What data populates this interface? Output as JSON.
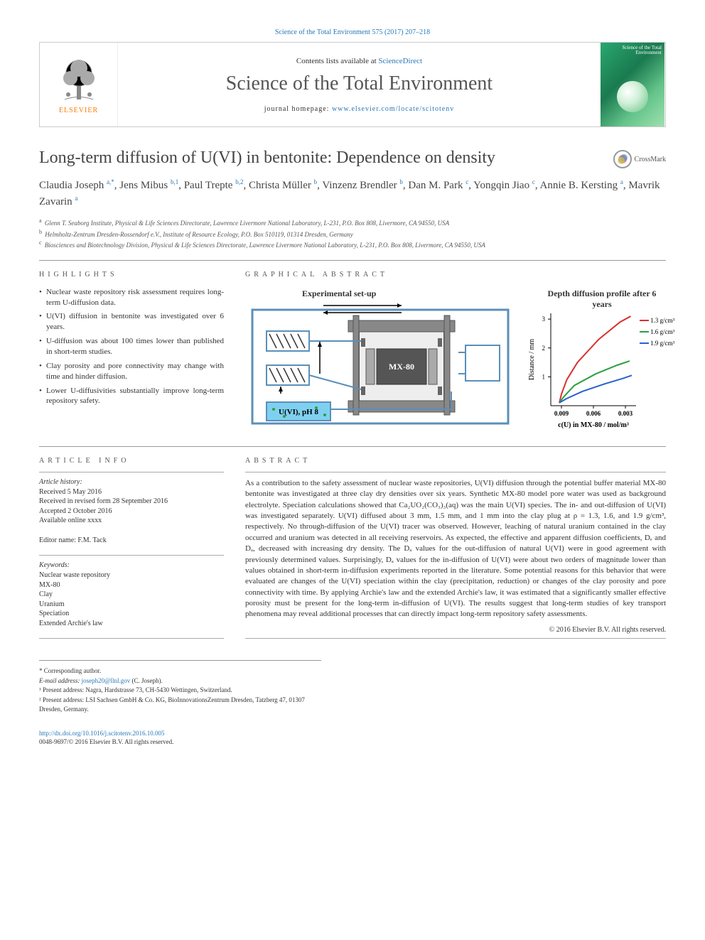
{
  "journal_ref": "Science of the Total Environment 575 (2017) 207–218",
  "masthead": {
    "contents_prefix": "Contents lists available at ",
    "contents_link": "ScienceDirect",
    "journal_name": "Science of the Total Environment",
    "homepage_prefix": "journal homepage: ",
    "homepage_url": "www.elsevier.com/locate/scitotenv",
    "publisher": "ELSEVIER",
    "cover_label": "Science of the Total Environment"
  },
  "crossmark_label": "CrossMark",
  "article_title": "Long-term diffusion of U(VI) in bentonite: Dependence on density",
  "authors_html": "Claudia Joseph <sup>a,*</sup>, Jens Mibus <sup>b,1</sup>, Paul Trepte <sup>b,2</sup>, Christa Müller <sup>b</sup>, Vinzenz Brendler <sup>b</sup>, Dan M. Park <sup>c</sup>, Yongqin Jiao <sup>c</sup>, Annie B. Kersting <sup>a</sup>, Mavrik Zavarin <sup>a</sup>",
  "affiliations": [
    {
      "sup": "a",
      "text": "Glenn T. Seaborg Institute, Physical & Life Sciences Directorate, Lawrence Livermore National Laboratory, L-231, P.O. Box 808, Livermore, CA 94550, USA"
    },
    {
      "sup": "b",
      "text": "Helmholtz-Zentrum Dresden-Rossendorf e.V., Institute of Resource Ecology, P.O. Box 510119, 01314 Dresden, Germany"
    },
    {
      "sup": "c",
      "text": "Biosciences and Biotechnology Division, Physical & Life Sciences Directorate, Lawrence Livermore National Laboratory, L-231, P.O. Box 808, Livermore, CA 94550, USA"
    }
  ],
  "highlights_heading": "HIGHLIGHTS",
  "ga_heading": "GRAPHICAL ABSTRACT",
  "highlights": [
    "Nuclear waste repository risk assessment requires long-term U-diffusion data.",
    "U(VI) diffusion in bentonite was investigated over 6 years.",
    "U-diffusion was about 100 times lower than published in short-term studies.",
    "Clay porosity and pore connectivity may change with time and hinder diffusion.",
    "Lower U-diffusivities substantially improve long-term repository safety."
  ],
  "ga": {
    "setup_label": "Experimental set-up",
    "profile_label": "Depth diffusion profile after 6 years",
    "cell_label": "MX-80",
    "uvi_label": "U(VI), pH 8",
    "densities": [
      "1.3 g/cm³",
      "1.6 g/cm³",
      "1.9 g/cm³"
    ],
    "y_ticks": [
      "1",
      "2",
      "3"
    ],
    "y_axis": "Distance / mm",
    "x_ticks": [
      "0.009",
      "0.006",
      "0.003"
    ],
    "x_axis": "c(U) in MX-80 / mol/m³",
    "colors": {
      "frame": "#5b8fb9",
      "hatch": "#333333",
      "cell_dark": "#555555",
      "cell_grey": "#888888",
      "uvi_box": "#7fd0f0",
      "line_red": "#d93030",
      "line_green": "#2aa040",
      "line_blue": "#2860d0",
      "bg": "#ffffff"
    },
    "profile_data": {
      "x_domain": [
        0.01,
        0.002
      ],
      "y_domain": [
        0,
        3.2
      ],
      "series": [
        {
          "name": "1.3",
          "color": "#d93030",
          "points": [
            [
              0.0092,
              0.1
            ],
            [
              0.009,
              0.4
            ],
            [
              0.0085,
              0.9
            ],
            [
              0.0075,
              1.5
            ],
            [
              0.0055,
              2.3
            ],
            [
              0.0035,
              2.9
            ],
            [
              0.0025,
              3.1
            ]
          ]
        },
        {
          "name": "1.6",
          "color": "#2aa040",
          "points": [
            [
              0.0092,
              0.1
            ],
            [
              0.0088,
              0.3
            ],
            [
              0.0078,
              0.7
            ],
            [
              0.0058,
              1.1
            ],
            [
              0.0038,
              1.4
            ],
            [
              0.0026,
              1.55
            ]
          ]
        },
        {
          "name": "1.9",
          "color": "#2860d0",
          "points": [
            [
              0.0092,
              0.1
            ],
            [
              0.0085,
              0.25
            ],
            [
              0.007,
              0.5
            ],
            [
              0.005,
              0.75
            ],
            [
              0.0032,
              0.95
            ],
            [
              0.0024,
              1.05
            ]
          ]
        }
      ]
    }
  },
  "article_info_heading": "ARTICLE INFO",
  "abstract_heading": "ABSTRACT",
  "history_label": "Article history:",
  "history": [
    "Received 5 May 2016",
    "Received in revised form 28 September 2016",
    "Accepted 2 October 2016",
    "Available online xxxx"
  ],
  "editor_label": "Editor name: F.M. Tack",
  "keywords_label": "Keywords:",
  "keywords": [
    "Nuclear waste repository",
    "MX-80",
    "Clay",
    "Uranium",
    "Speciation",
    "Extended Archie's law"
  ],
  "abstract_text": "As a contribution to the safety assessment of nuclear waste repositories, U(VI) diffusion through the potential buffer material MX-80 bentonite was investigated at three clay dry densities over six years. Synthetic MX-80 model pore water was used as background electrolyte. Speciation calculations showed that Ca₂UO₂(CO₃)₃(aq) was the main U(VI) species. The in- and out-diffusion of U(VI) was investigated separately. U(VI) diffused about 3 mm, 1.5 mm, and 1 mm into the clay plug at ρ = 1.3, 1.6, and 1.9 g/cm³, respectively. No through-diffusion of the U(VI) tracer was observed. However, leaching of natural uranium contained in the clay occurred and uranium was detected in all receiving reservoirs. As expected, the effective and apparent diffusion coefficients, Dₑ and Dₐ, decreased with increasing dry density. The Dₐ values for the out-diffusion of natural U(VI) were in good agreement with previously determined values. Surprisingly, Dₐ values for the in-diffusion of U(VI) were about two orders of magnitude lower than values obtained in short-term in-diffusion experiments reported in the literature. Some potential reasons for this behavior that were evaluated are changes of the U(VI) speciation within the clay (precipitation, reduction) or changes of the clay porosity and pore connectivity with time. By applying Archie's law and the extended Archie's law, it was estimated that a significantly smaller effective porosity must be present for the long-term in-diffusion of U(VI). The results suggest that long-term studies of key transport phenomena may reveal additional processes that can directly impact long-term repository safety assessments.",
  "copyright": "© 2016 Elsevier B.V. All rights reserved.",
  "footnotes": {
    "corr": "* Corresponding author.",
    "email_label": "E-mail address:",
    "email": "joseph20@llnl.gov",
    "email_tail": " (C. Joseph).",
    "note1": "¹ Present address: Nagra, Hardstrasse 73, CH-5430 Wettingen, Switzerland.",
    "note2": "² Present address: LSI Sachsen GmbH & Co. KG, BioInnovationsZentrum Dresden, Tatzberg 47, 01307 Dresden, Germany."
  },
  "doi": {
    "url": "http://dx.doi.org/10.1016/j.scitotenv.2016.10.005",
    "issn": "0048-9697/© 2016 Elsevier B.V. All rights reserved."
  }
}
